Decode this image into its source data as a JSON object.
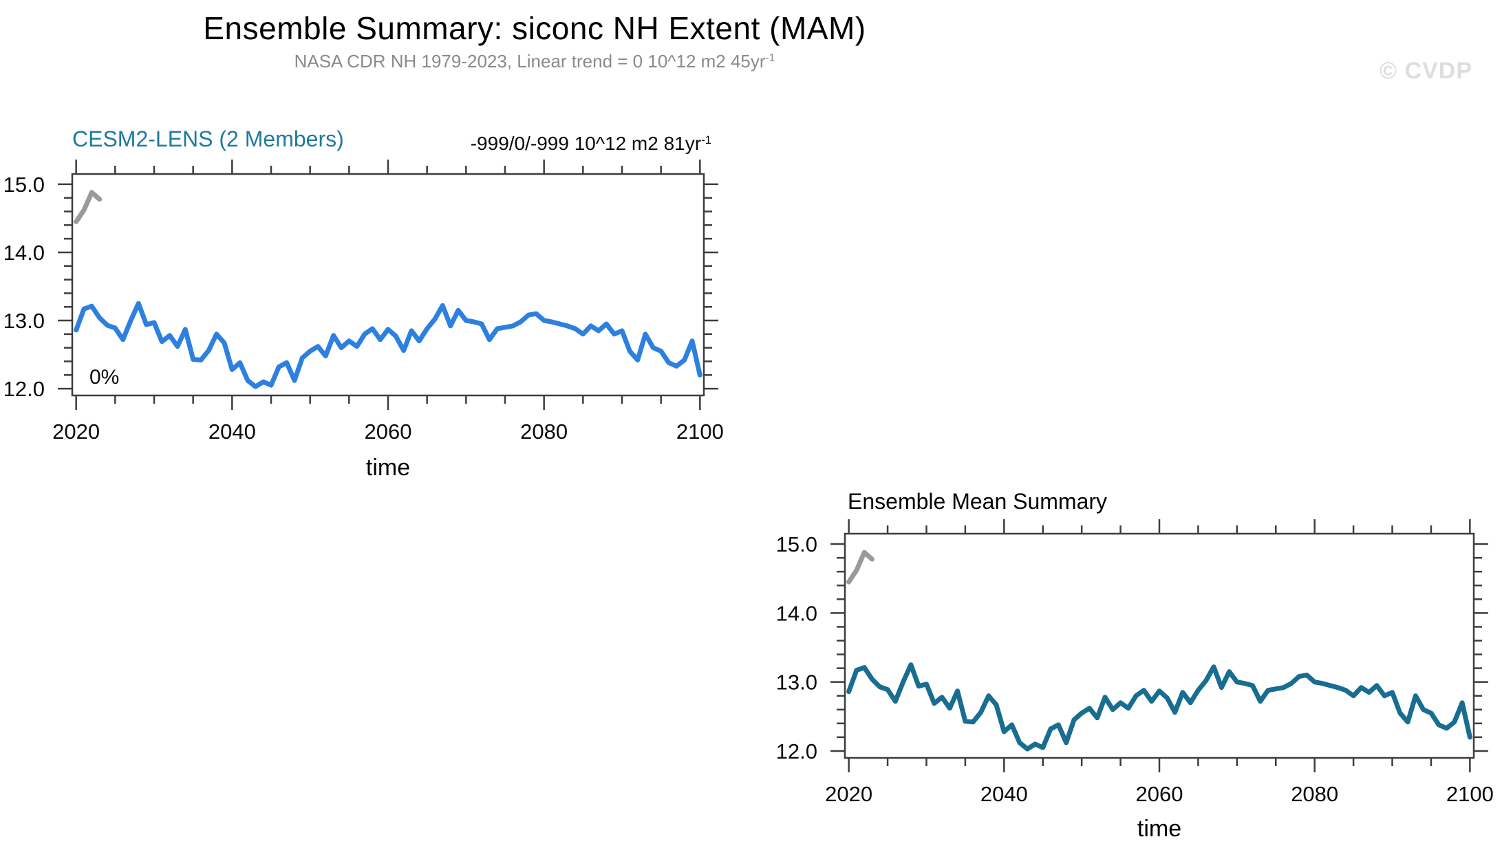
{
  "page": {
    "title": "Ensemble Summary: siconc NH Extent (MAM)",
    "subtitle": "NASA CDR NH 1979-2023, Linear trend = 0 10^12 m2 45yr",
    "subtitle_sup": "-1",
    "watermark": "© CVDP"
  },
  "colors": {
    "model_title": "#1e7b9d",
    "member_line": "#2e80df",
    "ensemble_mean_line": "#186d90",
    "observation_line": "#9a9a9a",
    "axis": "#3d3d3d",
    "subtitle_text": "#8a8a8a",
    "watermark_text": "#dedede"
  },
  "chart_data": [
    {
      "id": "cesm2-lens",
      "type": "line",
      "title": "CESM2-LENS (2 Members)",
      "trend_label": "-999/0/-999 10^12 m2 81yr",
      "trend_label_sup": "-1",
      "annotation": "0%",
      "xlabel": "time",
      "grid": false,
      "legend": "none",
      "xlim": [
        2019.5,
        2100.5
      ],
      "ylim": [
        11.9,
        15.15
      ],
      "xticks": [
        2020,
        2040,
        2060,
        2080,
        2100
      ],
      "xtick_labels": [
        "2020",
        "2040",
        "2060",
        "2080",
        "2100"
      ],
      "x_minor_step": 5,
      "yticks": [
        12.0,
        13.0,
        14.0,
        15.0
      ],
      "ytick_labels": [
        "12.0",
        "13.0",
        "14.0",
        "15.0"
      ],
      "y_minor_step": 0.2,
      "series": [
        {
          "name": "ensemble-member-mean",
          "color_key": "member_line",
          "x_start": 2020,
          "step": 1,
          "values": [
            12.86,
            13.17,
            13.21,
            13.04,
            12.93,
            12.89,
            12.72,
            13.0,
            13.25,
            12.94,
            12.97,
            12.69,
            12.78,
            12.62,
            12.87,
            12.43,
            12.42,
            12.56,
            12.8,
            12.67,
            12.28,
            12.38,
            12.12,
            12.03,
            12.1,
            12.05,
            12.32,
            12.38,
            12.12,
            12.45,
            12.55,
            12.62,
            12.48,
            12.78,
            12.6,
            12.7,
            12.62,
            12.8,
            12.88,
            12.72,
            12.87,
            12.77,
            12.56,
            12.85,
            12.7,
            12.88,
            13.02,
            13.22,
            12.92,
            13.15,
            13.0,
            12.98,
            12.95,
            12.72,
            12.88,
            12.9,
            12.92,
            12.98,
            13.08,
            13.1,
            13.0,
            12.98,
            12.95,
            12.92,
            12.88,
            12.8,
            12.92,
            12.85,
            12.95,
            12.8,
            12.85,
            12.55,
            12.42,
            12.8,
            12.6,
            12.55,
            12.38,
            12.33,
            12.42,
            12.7,
            12.2
          ]
        },
        {
          "name": "observations-nasa-cdr",
          "color_key": "observation_line",
          "x_start": 2020,
          "step": 1,
          "values": [
            14.45,
            14.62,
            14.88,
            14.78
          ]
        }
      ]
    },
    {
      "id": "ensemble-mean-summary",
      "type": "line",
      "title": "Ensemble Mean Summary",
      "trend_label": "",
      "trend_label_sup": "",
      "annotation": "",
      "xlabel": "time",
      "grid": false,
      "legend": "none",
      "xlim": [
        2019.5,
        2100.5
      ],
      "ylim": [
        11.9,
        15.15
      ],
      "xticks": [
        2020,
        2040,
        2060,
        2080,
        2100
      ],
      "xtick_labels": [
        "2020",
        "2040",
        "2060",
        "2080",
        "2100"
      ],
      "x_minor_step": 5,
      "yticks": [
        12.0,
        13.0,
        14.0,
        15.0
      ],
      "ytick_labels": [
        "12.0",
        "13.0",
        "14.0",
        "15.0"
      ],
      "y_minor_step": 0.2,
      "series": [
        {
          "name": "ensemble-mean",
          "color_key": "ensemble_mean_line",
          "x_start": 2020,
          "step": 1,
          "values": [
            12.86,
            13.17,
            13.21,
            13.04,
            12.93,
            12.89,
            12.72,
            13.0,
            13.25,
            12.94,
            12.97,
            12.69,
            12.78,
            12.62,
            12.87,
            12.43,
            12.42,
            12.56,
            12.8,
            12.67,
            12.28,
            12.38,
            12.12,
            12.03,
            12.1,
            12.05,
            12.32,
            12.38,
            12.12,
            12.45,
            12.55,
            12.62,
            12.48,
            12.78,
            12.6,
            12.7,
            12.62,
            12.8,
            12.88,
            12.72,
            12.87,
            12.77,
            12.56,
            12.85,
            12.7,
            12.88,
            13.02,
            13.22,
            12.92,
            13.15,
            13.0,
            12.98,
            12.95,
            12.72,
            12.88,
            12.9,
            12.92,
            12.98,
            13.08,
            13.1,
            13.0,
            12.98,
            12.95,
            12.92,
            12.88,
            12.8,
            12.92,
            12.85,
            12.95,
            12.8,
            12.85,
            12.55,
            12.42,
            12.8,
            12.6,
            12.55,
            12.38,
            12.33,
            12.42,
            12.7,
            12.2
          ]
        },
        {
          "name": "observations-nasa-cdr",
          "color_key": "observation_line",
          "x_start": 2020,
          "step": 1,
          "values": [
            14.45,
            14.62,
            14.88,
            14.78
          ]
        }
      ]
    }
  ]
}
